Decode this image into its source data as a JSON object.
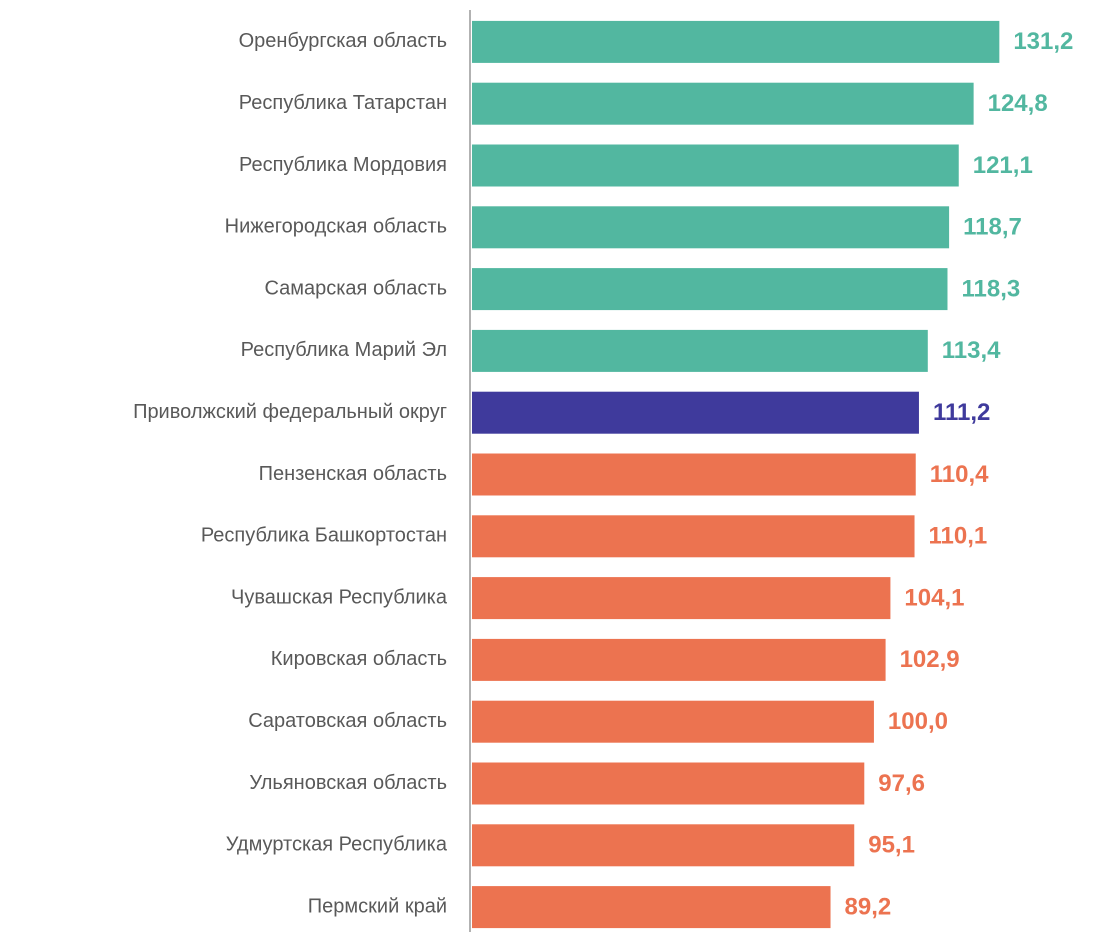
{
  "chart_data": {
    "type": "barh",
    "categories": [
      "Оренбургская область",
      "Республика Татарстан",
      "Республика Мордовия",
      "Нижегородская область",
      "Самарская область",
      "Республика Марий Эл",
      "Приволжский федеральный округ",
      "Пензенская область",
      "Республика Башкортостан",
      "Чувашская Республика",
      "Кировская область",
      "Саратовская область",
      "Ульяновская область",
      "Удмуртская Республика",
      "Пермский край"
    ],
    "values": [
      131.2,
      124.8,
      121.1,
      118.7,
      118.3,
      113.4,
      111.2,
      110.4,
      110.1,
      104.1,
      102.9,
      100.0,
      97.6,
      95.1,
      89.2
    ],
    "value_labels": [
      "131,2",
      "124,8",
      "121,1",
      "118,7",
      "118,3",
      "113,4",
      "111,2",
      "110,4",
      "110,1",
      "104,1",
      "102,9",
      "100,0",
      "97,6",
      "95,1",
      "89,2"
    ],
    "colors": [
      "#52b7a0",
      "#52b7a0",
      "#52b7a0",
      "#52b7a0",
      "#52b7a0",
      "#52b7a0",
      "#3f3a9c",
      "#ec7350",
      "#ec7350",
      "#ec7350",
      "#ec7350",
      "#ec7350",
      "#ec7350",
      "#ec7350",
      "#ec7350"
    ],
    "xlim": [
      0,
      155
    ]
  }
}
